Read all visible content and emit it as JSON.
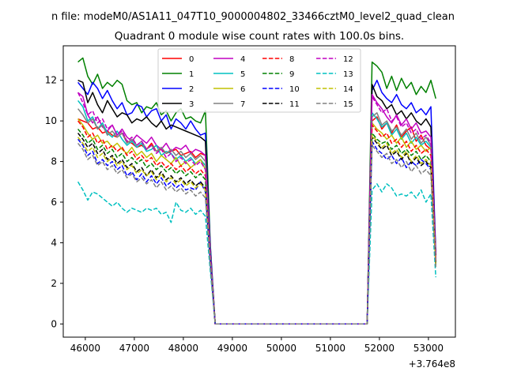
{
  "chart_data": {
    "type": "line",
    "suptitle": "n file: modeM0/AS1A11_047T10_9000004802_33466cztM0_level2_quad_clean",
    "title": "Quadrant 0 module wise count rates with 100.0s bins.",
    "xlabel": "",
    "ylabel": "",
    "x_offset_label": "+3.764e8",
    "xlim": [
      45550,
      53550
    ],
    "ylim": [
      -0.65,
      13.7
    ],
    "xticks": [
      46000,
      47000,
      48000,
      49000,
      50000,
      51000,
      52000,
      53000
    ],
    "yticks": [
      0,
      2,
      4,
      6,
      8,
      10,
      12
    ],
    "grid": false,
    "legend_location": "upper-center",
    "legend_columns": 4,
    "gap": {
      "start_index": 27,
      "end_index": 62
    },
    "x": {
      "start": 45850,
      "step": 100,
      "count": 74
    },
    "series": [
      {
        "name": "0",
        "color": "#ff0000",
        "style": "solid",
        "early": [
          10.1,
          10.0,
          9.9,
          9.6,
          9.7,
          9.4,
          9.5,
          9.3,
          9.2,
          9.4,
          9.0,
          8.9,
          8.7,
          8.8,
          8.6,
          8.9,
          8.5,
          8.6,
          8.4,
          8.5,
          8.6,
          8.3,
          8.4,
          8.5,
          8.2,
          8.4,
          8.3,
          3.6
        ],
        "late": [
          10.0,
          10.2,
          9.6,
          9.9,
          9.4,
          9.8,
          9.2,
          9.5,
          9.7,
          9.0,
          9.3,
          8.8,
          8.6,
          3.3
        ]
      },
      {
        "name": "1",
        "color": "#008000",
        "style": "solid",
        "early": [
          12.9,
          13.1,
          12.2,
          11.8,
          12.3,
          11.6,
          11.9,
          11.7,
          12.0,
          11.8,
          11.0,
          10.8,
          10.9,
          10.4,
          10.7,
          10.6,
          10.9,
          10.3,
          10.5,
          10.0,
          10.4,
          10.6,
          10.1,
          10.2,
          10.0,
          9.9,
          10.5,
          3.9
        ],
        "late": [
          12.9,
          12.7,
          12.4,
          11.6,
          12.2,
          11.5,
          12.1,
          11.6,
          11.9,
          11.3,
          11.7,
          11.4,
          12.0,
          11.1
        ]
      },
      {
        "name": "2",
        "color": "#0000ff",
        "style": "solid",
        "early": [
          11.9,
          11.6,
          11.3,
          11.9,
          11.6,
          11.1,
          11.5,
          11.0,
          10.6,
          10.9,
          10.3,
          10.4,
          10.8,
          10.7,
          10.2,
          10.5,
          10.6,
          10.0,
          10.3,
          9.6,
          10.1,
          9.9,
          9.6,
          10.0,
          9.6,
          9.3,
          9.4,
          3.8
        ],
        "late": [
          11.5,
          12.0,
          11.4,
          11.1,
          10.9,
          11.3,
          10.8,
          10.6,
          10.9,
          10.4,
          10.6,
          10.3,
          10.7,
          3.5
        ]
      },
      {
        "name": "3",
        "color": "#000000",
        "style": "solid",
        "early": [
          12.0,
          11.9,
          10.9,
          11.4,
          10.8,
          10.4,
          11.0,
          10.6,
          10.2,
          10.4,
          10.3,
          9.9,
          10.1,
          10.0,
          10.2,
          9.9,
          9.7,
          10.0,
          9.6,
          9.8,
          9.7,
          9.6,
          9.5,
          9.4,
          9.3,
          9.2,
          9.0,
          3.6
        ],
        "late": [
          11.8,
          11.2,
          11.0,
          10.6,
          10.8,
          10.3,
          10.5,
          10.1,
          10.4,
          10.0,
          9.8,
          10.1,
          9.7,
          3.4
        ]
      },
      {
        "name": "4",
        "color": "#c000c0",
        "style": "solid",
        "early": [
          11.4,
          11.2,
          10.3,
          9.9,
          10.2,
          9.7,
          9.5,
          9.8,
          9.3,
          9.6,
          9.2,
          9.0,
          9.3,
          9.1,
          8.9,
          9.2,
          8.8,
          8.6,
          8.9,
          8.5,
          8.7,
          8.6,
          8.8,
          8.4,
          8.6,
          8.5,
          8.3,
          3.5
        ],
        "late": [
          11.3,
          10.9,
          10.6,
          10.2,
          9.9,
          10.3,
          9.8,
          10.1,
          9.6,
          9.9,
          9.4,
          9.5,
          9.2,
          3.3
        ]
      },
      {
        "name": "5",
        "color": "#00c0c0",
        "style": "solid",
        "early": [
          11.0,
          10.7,
          10.0,
          10.2,
          9.6,
          9.9,
          9.4,
          9.2,
          9.5,
          9.1,
          8.8,
          9.0,
          8.7,
          8.9,
          8.5,
          8.6,
          8.8,
          8.3,
          8.5,
          8.4,
          8.1,
          8.3,
          8.0,
          8.2,
          7.9,
          8.1,
          7.8,
          3.4
        ],
        "late": [
          10.4,
          10.1,
          9.7,
          9.9,
          9.3,
          9.6,
          9.1,
          9.4,
          8.9,
          9.2,
          8.8,
          9.0,
          8.7,
          3.1
        ]
      },
      {
        "name": "6",
        "color": "#c0c000",
        "style": "solid",
        "early": [
          10.1,
          9.8,
          9.4,
          9.1,
          9.3,
          8.9,
          9.0,
          8.7,
          8.9,
          8.6,
          8.4,
          8.7,
          8.3,
          8.5,
          8.2,
          8.4,
          8.0,
          8.3,
          8.1,
          7.9,
          8.2,
          7.8,
          8.0,
          7.7,
          7.9,
          8.1,
          7.6,
          3.3
        ],
        "late": [
          9.9,
          9.6,
          9.4,
          9.1,
          9.3,
          8.9,
          9.2,
          8.7,
          9.0,
          8.6,
          8.8,
          8.5,
          8.7,
          3.0
        ]
      },
      {
        "name": "7",
        "color": "#808080",
        "style": "solid",
        "early": [
          10.6,
          10.3,
          9.9,
          10.1,
          9.6,
          9.8,
          9.3,
          9.5,
          9.2,
          9.4,
          8.9,
          9.1,
          8.8,
          9.0,
          8.6,
          8.8,
          8.5,
          8.7,
          8.4,
          8.6,
          8.3,
          8.5,
          8.2,
          8.4,
          8.1,
          8.3,
          8.0,
          3.4
        ],
        "late": [
          10.2,
          10.4,
          9.8,
          10.0,
          9.5,
          9.7,
          9.3,
          9.6,
          9.1,
          9.4,
          8.9,
          9.2,
          8.8,
          3.2
        ]
      },
      {
        "name": "8",
        "color": "#ff0000",
        "style": "dashed",
        "early": [
          10.0,
          9.7,
          9.2,
          9.4,
          8.9,
          9.1,
          8.6,
          8.8,
          8.5,
          8.7,
          8.3,
          8.5,
          8.1,
          8.3,
          8.0,
          8.2,
          7.8,
          8.0,
          7.7,
          7.9,
          7.6,
          7.8,
          7.5,
          7.7,
          7.4,
          7.6,
          7.3,
          3.2
        ],
        "late": [
          9.8,
          9.5,
          9.2,
          9.4,
          8.9,
          9.1,
          8.7,
          9.0,
          8.5,
          8.8,
          8.4,
          8.6,
          8.3,
          3.1
        ]
      },
      {
        "name": "9",
        "color": "#008000",
        "style": "dashed",
        "early": [
          9.6,
          9.3,
          8.9,
          9.1,
          8.6,
          8.8,
          8.4,
          8.6,
          8.2,
          8.4,
          8.0,
          8.2,
          7.9,
          8.1,
          7.7,
          7.9,
          7.6,
          7.8,
          7.5,
          7.7,
          7.4,
          7.6,
          7.3,
          7.5,
          7.2,
          7.4,
          7.1,
          3.1
        ],
        "late": [
          9.4,
          9.1,
          8.9,
          9.0,
          8.6,
          8.8,
          8.4,
          8.6,
          8.3,
          8.5,
          8.1,
          8.3,
          8.0,
          3.0
        ]
      },
      {
        "name": "10",
        "color": "#0000ff",
        "style": "dashed",
        "early": [
          9.1,
          8.8,
          8.3,
          8.5,
          7.9,
          8.1,
          7.8,
          8.0,
          7.6,
          7.8,
          7.3,
          7.5,
          7.1,
          7.4,
          7.0,
          7.3,
          6.9,
          7.2,
          6.8,
          7.0,
          6.7,
          6.9,
          6.6,
          6.7,
          6.6,
          7.0,
          6.5,
          3.0
        ],
        "late": [
          9.0,
          8.6,
          8.4,
          8.1,
          8.3,
          7.9,
          8.2,
          7.7,
          8.0,
          7.8,
          8.1,
          7.9,
          7.6,
          2.9
        ]
      },
      {
        "name": "11",
        "color": "#000000",
        "style": "dashed",
        "early": [
          9.4,
          9.1,
          8.7,
          8.9,
          8.4,
          8.6,
          8.1,
          8.3,
          7.9,
          8.1,
          7.7,
          7.9,
          7.5,
          7.7,
          7.3,
          7.6,
          7.2,
          7.5,
          7.1,
          7.3,
          7.0,
          7.2,
          6.9,
          7.1,
          6.8,
          7.0,
          6.7,
          3.0
        ],
        "late": [
          9.2,
          8.9,
          8.6,
          8.8,
          8.3,
          8.5,
          8.1,
          8.4,
          7.9,
          8.2,
          7.8,
          8.0,
          7.7,
          2.9
        ]
      },
      {
        "name": "12",
        "color": "#c000c0",
        "style": "dashed",
        "early": [
          11.4,
          10.9,
          10.3,
          10.5,
          9.9,
          10.1,
          9.6,
          9.8,
          9.3,
          9.5,
          9.0,
          9.2,
          8.8,
          9.0,
          8.6,
          8.8,
          8.4,
          8.6,
          8.2,
          8.4,
          8.0,
          8.2,
          7.9,
          8.1,
          7.8,
          8.0,
          7.6,
          3.4
        ],
        "late": [
          11.2,
          10.8,
          10.4,
          10.6,
          10.0,
          10.2,
          9.7,
          9.9,
          9.4,
          9.6,
          9.1,
          9.3,
          8.9,
          3.2
        ]
      },
      {
        "name": "13",
        "color": "#00c0c0",
        "style": "dashed",
        "early": [
          7.0,
          6.6,
          6.1,
          6.5,
          6.4,
          6.2,
          6.0,
          5.8,
          6.0,
          5.7,
          5.5,
          5.7,
          5.6,
          5.5,
          5.7,
          5.6,
          5.7,
          5.4,
          5.5,
          5.0,
          6.0,
          5.6,
          5.5,
          5.7,
          5.4,
          5.6,
          5.3,
          2.6
        ],
        "late": [
          6.6,
          6.9,
          6.5,
          6.9,
          6.7,
          6.3,
          6.4,
          6.3,
          6.5,
          6.2,
          6.6,
          6.0,
          6.4,
          2.3
        ]
      },
      {
        "name": "14",
        "color": "#c0c000",
        "style": "dashed",
        "early": [
          9.2,
          8.9,
          8.5,
          8.7,
          8.2,
          8.4,
          8.0,
          8.2,
          7.8,
          8.0,
          7.6,
          7.8,
          7.4,
          7.6,
          7.3,
          7.5,
          7.1,
          7.4,
          7.0,
          7.2,
          6.9,
          7.1,
          6.8,
          7.0,
          6.7,
          6.9,
          6.6,
          3.0
        ],
        "late": [
          9.3,
          9.0,
          8.7,
          8.9,
          8.4,
          8.6,
          8.2,
          8.5,
          8.0,
          8.3,
          7.9,
          8.1,
          7.8,
          2.9
        ]
      },
      {
        "name": "15",
        "color": "#808080",
        "style": "dashed",
        "early": [
          8.9,
          8.6,
          8.1,
          8.3,
          7.8,
          8.0,
          7.6,
          7.8,
          7.4,
          7.6,
          7.2,
          7.4,
          7.0,
          7.2,
          6.9,
          7.1,
          6.7,
          7.0,
          6.6,
          6.8,
          6.5,
          6.7,
          6.4,
          6.6,
          6.3,
          6.5,
          6.2,
          2.9
        ],
        "late": [
          8.8,
          8.5,
          8.2,
          8.4,
          7.9,
          8.1,
          7.7,
          8.0,
          7.5,
          7.8,
          7.4,
          7.6,
          7.3,
          2.8
        ]
      }
    ]
  }
}
